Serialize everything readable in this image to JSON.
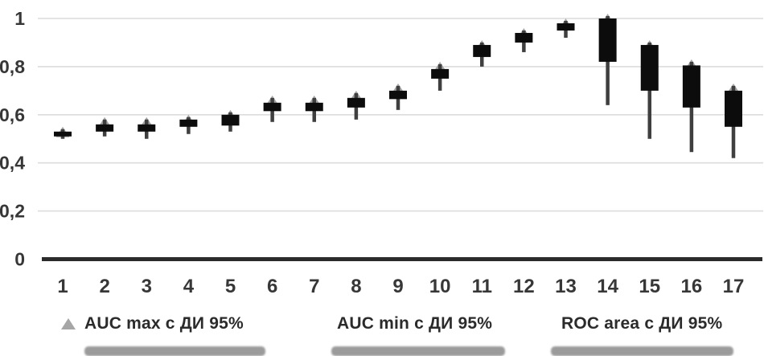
{
  "chart_data": {
    "type": "bar",
    "subtype": "high-low-box stock chart with max markers",
    "title": "",
    "xlabel": "",
    "ylabel": "",
    "ylim": [
      0,
      1
    ],
    "grid": "horizontal",
    "decimal_separator": ",",
    "y_axis": {
      "ticks": [
        {
          "label": "1",
          "value": 1.0
        },
        {
          "label": "0,8",
          "value": 0.8
        },
        {
          "label": "0,6",
          "value": 0.6
        },
        {
          "label": "0,4",
          "value": 0.4
        },
        {
          "label": "0,2",
          "value": 0.2
        },
        {
          "label": "0",
          "value": 0.0
        }
      ]
    },
    "categories": [
      "1",
      "2",
      "3",
      "4",
      "5",
      "6",
      "7",
      "8",
      "9",
      "10",
      "11",
      "12",
      "13",
      "14",
      "15",
      "16",
      "17"
    ],
    "points": [
      {
        "x": "1",
        "auc_max": 0.55,
        "box_top": 0.53,
        "box_bottom": 0.51,
        "low": 0.5
      },
      {
        "x": "2",
        "auc_max": 0.59,
        "box_top": 0.56,
        "box_bottom": 0.53,
        "low": 0.51
      },
      {
        "x": "3",
        "auc_max": 0.59,
        "box_top": 0.56,
        "box_bottom": 0.53,
        "low": 0.5
      },
      {
        "x": "4",
        "auc_max": 0.6,
        "box_top": 0.58,
        "box_bottom": 0.55,
        "low": 0.52
      },
      {
        "x": "5",
        "auc_max": 0.62,
        "box_top": 0.6,
        "box_bottom": 0.555,
        "low": 0.53
      },
      {
        "x": "6",
        "auc_max": 0.68,
        "box_top": 0.65,
        "box_bottom": 0.615,
        "low": 0.57
      },
      {
        "x": "7",
        "auc_max": 0.68,
        "box_top": 0.65,
        "box_bottom": 0.615,
        "low": 0.57
      },
      {
        "x": "8",
        "auc_max": 0.7,
        "box_top": 0.67,
        "box_bottom": 0.63,
        "low": 0.58
      },
      {
        "x": "9",
        "auc_max": 0.73,
        "box_top": 0.7,
        "box_bottom": 0.665,
        "low": 0.62
      },
      {
        "x": "10",
        "auc_max": 0.82,
        "box_top": 0.79,
        "box_bottom": 0.75,
        "low": 0.7
      },
      {
        "x": "11",
        "auc_max": 0.91,
        "box_top": 0.89,
        "box_bottom": 0.84,
        "low": 0.8
      },
      {
        "x": "12",
        "auc_max": 0.96,
        "box_top": 0.94,
        "box_bottom": 0.9,
        "low": 0.86
      },
      {
        "x": "13",
        "auc_max": 1.0,
        "box_top": 0.98,
        "box_bottom": 0.95,
        "low": 0.92
      },
      {
        "x": "14",
        "auc_max": 1.02,
        "box_top": 1.0,
        "box_bottom": 0.82,
        "low": 0.64
      },
      {
        "x": "15",
        "auc_max": 0.91,
        "box_top": 0.89,
        "box_bottom": 0.7,
        "low": 0.5
      },
      {
        "x": "16",
        "auc_max": 0.83,
        "box_top": 0.805,
        "box_bottom": 0.63,
        "low": 0.445
      },
      {
        "x": "17",
        "auc_max": 0.73,
        "box_top": 0.7,
        "box_bottom": 0.55,
        "low": 0.42
      }
    ],
    "legend_position": "bottom"
  },
  "legend": {
    "items": [
      {
        "label": "AUC max с ДИ 95%",
        "marker": "triangle-icon"
      },
      {
        "label": "AUC min с ДИ 95%",
        "marker": "none-visible"
      },
      {
        "label": "ROC area с ДИ 95%",
        "marker": "none-visible"
      }
    ]
  },
  "colors": {
    "box": "#0c0c0c",
    "whisker": "#3f3f3f",
    "triangle": "#a6a6a6",
    "gridline": "#dcdcdc",
    "axis_line": "#2b2b2b",
    "tick_label": "#373737",
    "legend_text": "#2b2b2b",
    "background": "#ffffff"
  }
}
